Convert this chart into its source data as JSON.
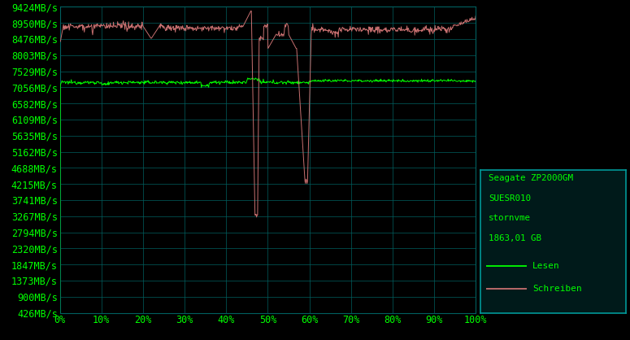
{
  "background_color": "#000000",
  "plot_bg_color": "#000000",
  "grid_color": "#006060",
  "text_color": "#00ff00",
  "ylim": [
    426,
    9424
  ],
  "xlim": [
    0,
    100
  ],
  "ytick_labels": [
    "426MB/s",
    "900MB/s",
    "1373MB/s",
    "1847MB/s",
    "2320MB/s",
    "2794MB/s",
    "3267MB/s",
    "3741MB/s",
    "4215MB/s",
    "4688MB/s",
    "5162MB/s",
    "5635MB/s",
    "6109MB/s",
    "6582MB/s",
    "7056MB/s",
    "7529MB/s",
    "8003MB/s",
    "8476MB/s",
    "8950MB/s",
    "9424MB/s"
  ],
  "ytick_values": [
    426,
    900,
    1373,
    1847,
    2320,
    2794,
    3267,
    3741,
    4215,
    4688,
    5162,
    5635,
    6109,
    6582,
    7056,
    7529,
    8003,
    8476,
    8950,
    9424
  ],
  "xtick_labels": [
    "0%",
    "10%",
    "20%",
    "30%",
    "40%",
    "50%",
    "60%",
    "70%",
    "80%",
    "90%",
    "100%"
  ],
  "xtick_values": [
    0,
    10,
    20,
    30,
    40,
    50,
    60,
    70,
    80,
    90,
    100
  ],
  "legend_text_lines": [
    "Seagate ZP2000GM",
    "SUESR010",
    "stornvme",
    "1863,01 GB"
  ],
  "legend_lesen": "Lesen",
  "legend_schreiben": "Schreiben",
  "green_color": "#00ff00",
  "red_color": "#c87070",
  "legend_box_bg": "#001a1a",
  "legend_box_border": "#009999",
  "font_size": 8.5
}
